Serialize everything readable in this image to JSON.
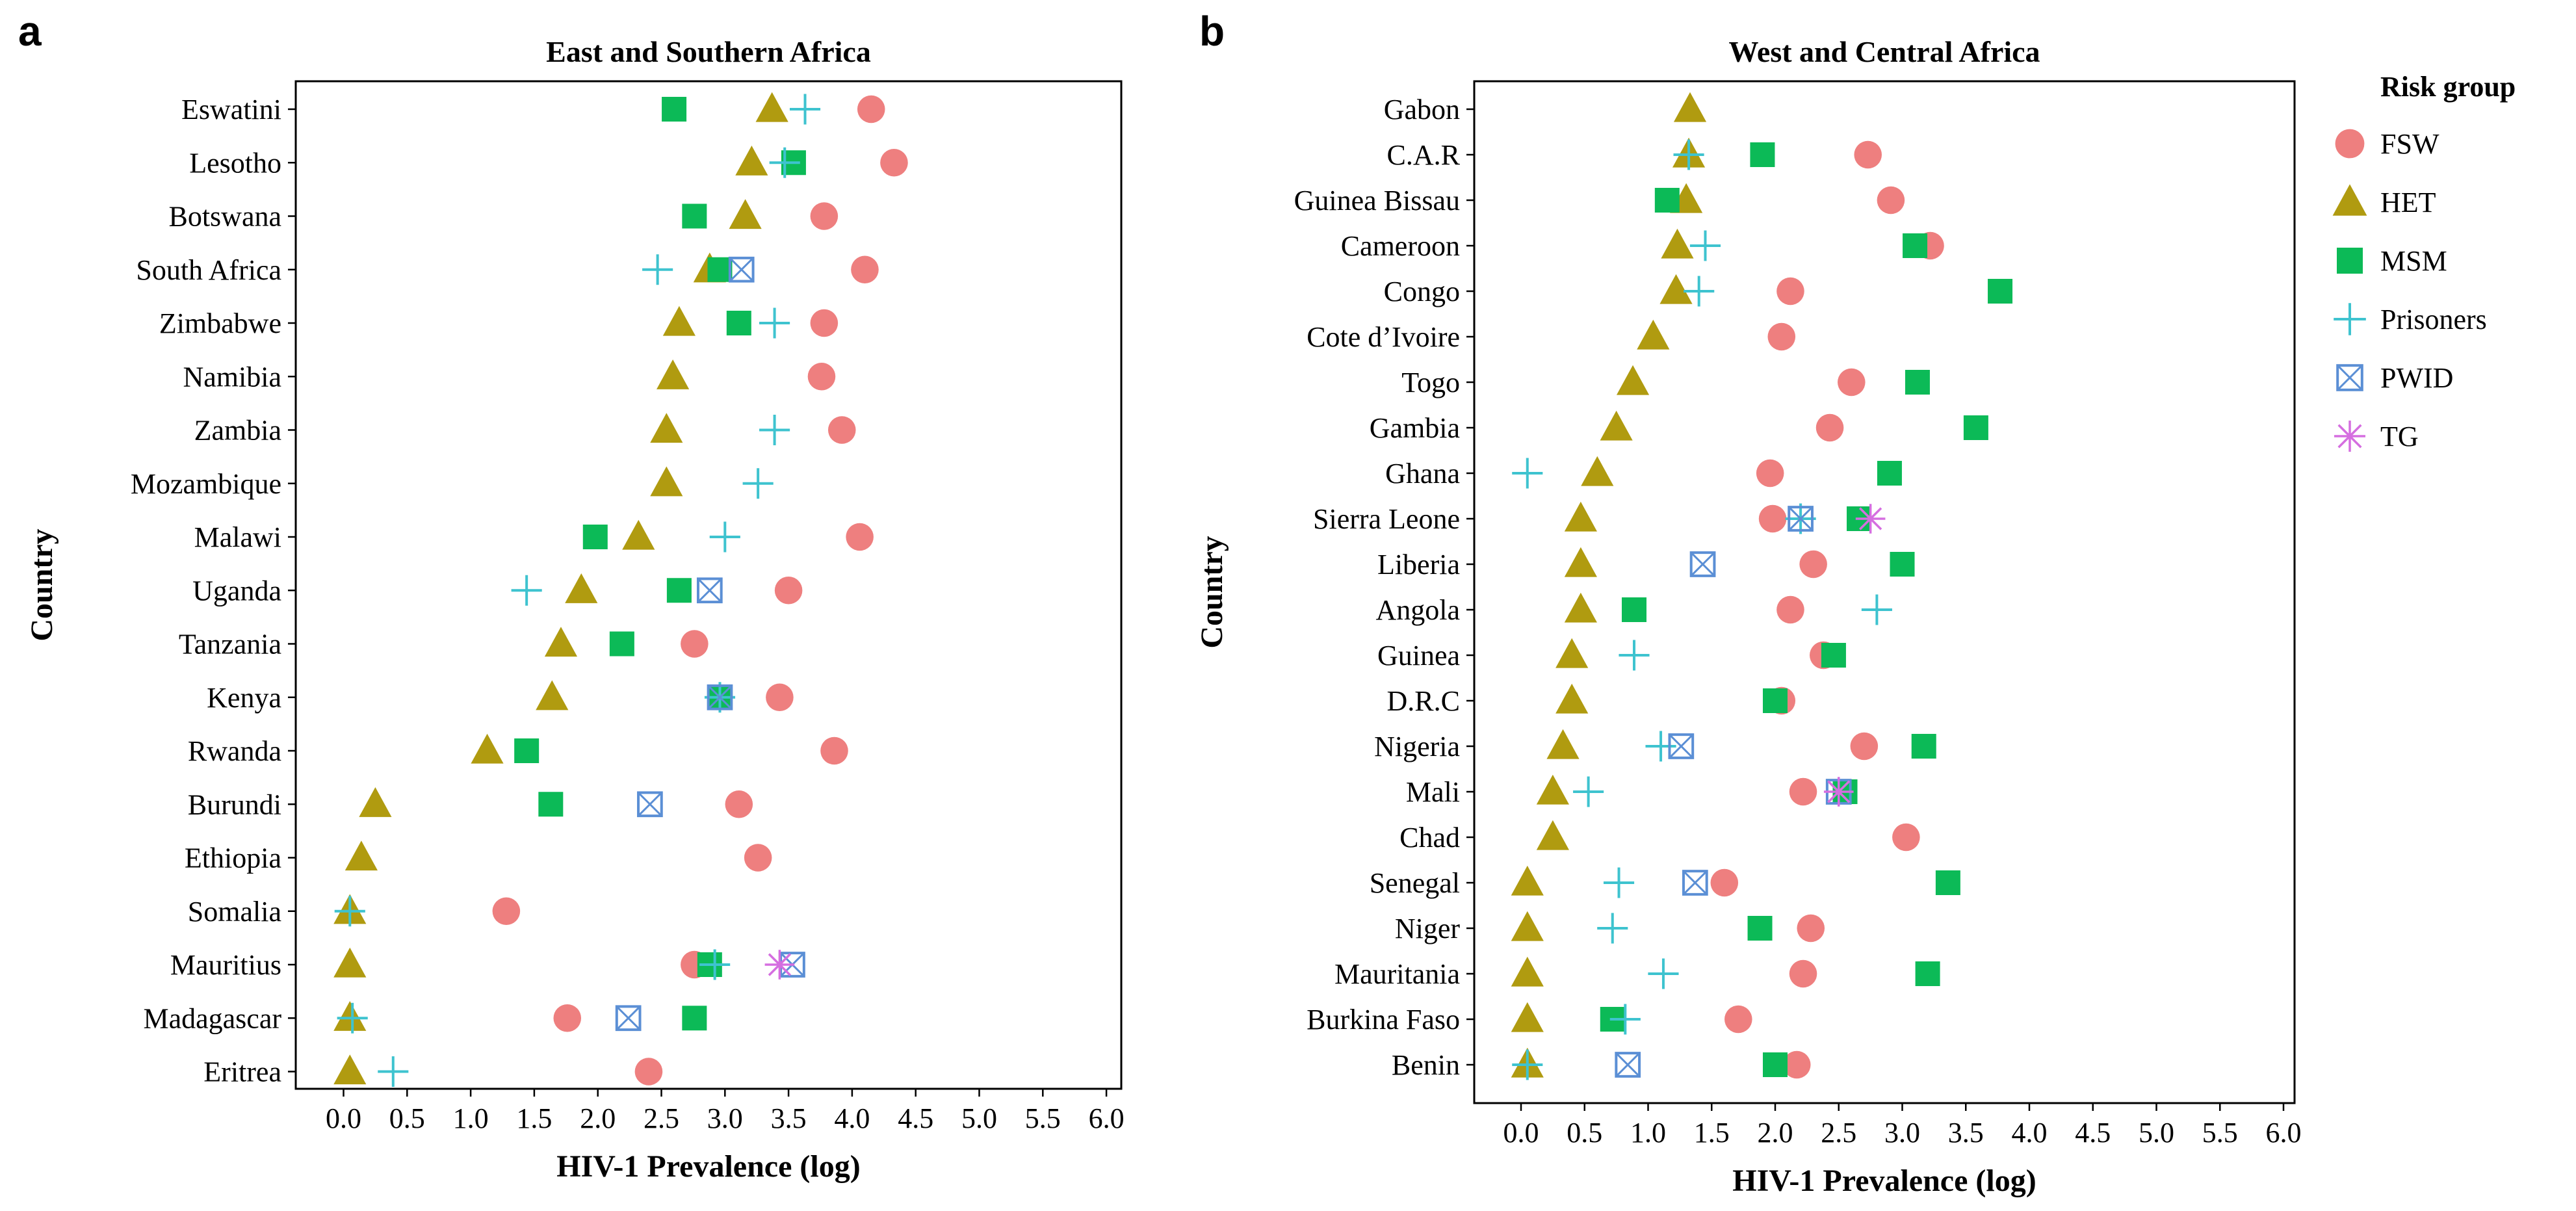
{
  "chart_data": [
    {
      "type": "scatter",
      "panel_label": "a",
      "title": "East and Southern Africa",
      "xlabel": "HIV-1 Prevalence (log)",
      "ylabel": "Country",
      "xlim": [
        -0.2,
        6.2
      ],
      "xticks": [
        "0.0",
        "0.5",
        "1.0",
        "1.5",
        "2.0",
        "2.5",
        "3.0",
        "3.5",
        "4.0",
        "4.5",
        "5.0",
        "5.5",
        "6.0"
      ],
      "categories": [
        "Eswatini",
        "Lesotho",
        "Botswana",
        "South Africa",
        "Zimbabwe",
        "Namibia",
        "Zambia",
        "Mozambique",
        "Malawi",
        "Uganda",
        "Tanzania",
        "Kenya",
        "Rwanda",
        "Burundi",
        "Ethiopia",
        "Somalia",
        "Mauritius",
        "Madagascar",
        "Eritrea"
      ],
      "series": [
        {
          "name": "FSW",
          "points": [
            [
              "Eswatini",
              4.15
            ],
            [
              "Lesotho",
              4.33
            ],
            [
              "Botswana",
              3.78
            ],
            [
              "South Africa",
              4.1
            ],
            [
              "Zimbabwe",
              3.78
            ],
            [
              "Namibia",
              3.76
            ],
            [
              "Zambia",
              3.92
            ],
            [
              "Malawi",
              4.06
            ],
            [
              "Uganda",
              3.5
            ],
            [
              "Tanzania",
              2.76
            ],
            [
              "Kenya",
              3.43
            ],
            [
              "Rwanda",
              3.86
            ],
            [
              "Burundi",
              3.11
            ],
            [
              "Ethiopia",
              3.26
            ],
            [
              "Somalia",
              1.28
            ],
            [
              "Mauritius",
              2.76
            ],
            [
              "Madagascar",
              1.76
            ],
            [
              "Eritrea",
              2.4
            ]
          ]
        },
        {
          "name": "HET",
          "points": [
            [
              "Eswatini",
              3.37
            ],
            [
              "Lesotho",
              3.21
            ],
            [
              "Botswana",
              3.16
            ],
            [
              "South Africa",
              2.88
            ],
            [
              "Zimbabwe",
              2.64
            ],
            [
              "Namibia",
              2.59
            ],
            [
              "Zambia",
              2.54
            ],
            [
              "Mozambique",
              2.54
            ],
            [
              "Malawi",
              2.32
            ],
            [
              "Uganda",
              1.87
            ],
            [
              "Tanzania",
              1.71
            ],
            [
              "Kenya",
              1.64
            ],
            [
              "Rwanda",
              1.13
            ],
            [
              "Burundi",
              0.25
            ],
            [
              "Ethiopia",
              0.14
            ],
            [
              "Somalia",
              0.05
            ],
            [
              "Mauritius",
              0.05
            ],
            [
              "Madagascar",
              0.05
            ],
            [
              "Eritrea",
              0.05
            ]
          ]
        },
        {
          "name": "MSM",
          "points": [
            [
              "Eswatini",
              2.6
            ],
            [
              "Lesotho",
              3.54
            ],
            [
              "Botswana",
              2.76
            ],
            [
              "South Africa",
              2.96
            ],
            [
              "Zimbabwe",
              3.11
            ],
            [
              "Malawi",
              1.98
            ],
            [
              "Uganda",
              2.64
            ],
            [
              "Tanzania",
              2.19
            ],
            [
              "Kenya",
              2.96
            ],
            [
              "Rwanda",
              1.44
            ],
            [
              "Burundi",
              1.63
            ],
            [
              "Mauritius",
              2.88
            ],
            [
              "Madagascar",
              2.76
            ]
          ]
        },
        {
          "name": "Prisoners",
          "points": [
            [
              "Eswatini",
              3.63
            ],
            [
              "Lesotho",
              3.47
            ],
            [
              "South Africa",
              2.47
            ],
            [
              "Zimbabwe",
              3.39
            ],
            [
              "Zambia",
              3.39
            ],
            [
              "Mozambique",
              3.26
            ],
            [
              "Malawi",
              3.0
            ],
            [
              "Uganda",
              1.44
            ],
            [
              "Kenya",
              2.96
            ],
            [
              "Somalia",
              0.05
            ],
            [
              "Mauritius",
              2.92
            ],
            [
              "Madagascar",
              0.07
            ],
            [
              "Eritrea",
              0.39
            ]
          ]
        },
        {
          "name": "PWID",
          "points": [
            [
              "South Africa",
              3.13
            ],
            [
              "Uganda",
              2.88
            ],
            [
              "Kenya",
              2.96
            ],
            [
              "Burundi",
              2.41
            ],
            [
              "Mauritius",
              3.53
            ],
            [
              "Madagascar",
              2.24
            ]
          ]
        },
        {
          "name": "TG",
          "points": [
            [
              "Mauritius",
              3.43
            ]
          ]
        }
      ]
    },
    {
      "type": "scatter",
      "panel_label": "b",
      "title": "West and Central Africa",
      "xlabel": "HIV-1 Prevalence (log)",
      "ylabel": "Country",
      "xlim": [
        -0.2,
        6.2
      ],
      "xticks": [
        "0.0",
        "0.5",
        "1.0",
        "1.5",
        "2.0",
        "2.5",
        "3.0",
        "3.5",
        "4.0",
        "4.5",
        "5.0",
        "5.5",
        "6.0"
      ],
      "categories": [
        "Gabon",
        "C.A.R",
        "Guinea Bissau",
        "Cameroon",
        "Congo",
        "Cote d’Ivoire",
        "Togo",
        "Gambia",
        "Ghana",
        "Sierra Leone",
        "Liberia",
        "Angola",
        "Guinea",
        "D.R.C",
        "Nigeria",
        "Mali",
        "Chad",
        "Senegal",
        "Niger",
        "Mauritania",
        "Burkina Faso",
        "Benin"
      ],
      "series": [
        {
          "name": "FSW",
          "points": [
            [
              "C.A.R",
              2.73
            ],
            [
              "Guinea Bissau",
              2.91
            ],
            [
              "Cameroon",
              3.22
            ],
            [
              "Congo",
              2.12
            ],
            [
              "Cote d’Ivoire",
              2.05
            ],
            [
              "Togo",
              2.6
            ],
            [
              "Gambia",
              2.43
            ],
            [
              "Ghana",
              1.96
            ],
            [
              "Sierra Leone",
              1.98
            ],
            [
              "Liberia",
              2.3
            ],
            [
              "Angola",
              2.12
            ],
            [
              "Guinea",
              2.38
            ],
            [
              "D.R.C",
              2.05
            ],
            [
              "Nigeria",
              2.7
            ],
            [
              "Mali",
              2.22
            ],
            [
              "Chad",
              3.03
            ],
            [
              "Senegal",
              1.6
            ],
            [
              "Niger",
              2.28
            ],
            [
              "Mauritania",
              2.22
            ],
            [
              "Burkina Faso",
              1.71
            ],
            [
              "Benin",
              2.17
            ]
          ]
        },
        {
          "name": "HET",
          "points": [
            [
              "Gabon",
              1.33
            ],
            [
              "C.A.R",
              1.32
            ],
            [
              "Guinea Bissau",
              1.3
            ],
            [
              "Cameroon",
              1.23
            ],
            [
              "Congo",
              1.22
            ],
            [
              "Cote d’Ivoire",
              1.04
            ],
            [
              "Togo",
              0.88
            ],
            [
              "Gambia",
              0.75
            ],
            [
              "Ghana",
              0.6
            ],
            [
              "Sierra Leone",
              0.47
            ],
            [
              "Liberia",
              0.47
            ],
            [
              "Angola",
              0.47
            ],
            [
              "Guinea",
              0.4
            ],
            [
              "D.R.C",
              0.4
            ],
            [
              "Nigeria",
              0.33
            ],
            [
              "Mali",
              0.25
            ],
            [
              "Chad",
              0.25
            ],
            [
              "Senegal",
              0.05
            ],
            [
              "Niger",
              0.05
            ],
            [
              "Mauritania",
              0.05
            ],
            [
              "Burkina Faso",
              0.05
            ],
            [
              "Benin",
              0.05
            ]
          ]
        },
        {
          "name": "MSM",
          "points": [
            [
              "C.A.R",
              1.9
            ],
            [
              "Guinea Bissau",
              1.15
            ],
            [
              "Cameroon",
              3.1
            ],
            [
              "Congo",
              3.77
            ],
            [
              "Togo",
              3.12
            ],
            [
              "Gambia",
              3.58
            ],
            [
              "Ghana",
              2.9
            ],
            [
              "Sierra Leone",
              2.66
            ],
            [
              "Liberia",
              3.0
            ],
            [
              "Angola",
              0.89
            ],
            [
              "Guinea",
              2.46
            ],
            [
              "D.R.C",
              2.0
            ],
            [
              "Nigeria",
              3.17
            ],
            [
              "Mali",
              2.55
            ],
            [
              "Senegal",
              3.36
            ],
            [
              "Niger",
              1.88
            ],
            [
              "Mauritania",
              3.2
            ],
            [
              "Burkina Faso",
              0.72
            ],
            [
              "Benin",
              2.0
            ]
          ]
        },
        {
          "name": "Prisoners",
          "points": [
            [
              "C.A.R",
              1.32
            ],
            [
              "Cameroon",
              1.45
            ],
            [
              "Congo",
              1.4
            ],
            [
              "Ghana",
              0.05
            ],
            [
              "Sierra Leone",
              2.2
            ],
            [
              "Angola",
              2.8
            ],
            [
              "Guinea",
              0.89
            ],
            [
              "Nigeria",
              1.1
            ],
            [
              "Mali",
              0.53
            ],
            [
              "Senegal",
              0.77
            ],
            [
              "Niger",
              0.72
            ],
            [
              "Mauritania",
              1.12
            ],
            [
              "Burkina Faso",
              0.82
            ],
            [
              "Benin",
              0.05
            ]
          ]
        },
        {
          "name": "PWID",
          "points": [
            [
              "Sierra Leone",
              2.2
            ],
            [
              "Liberia",
              1.43
            ],
            [
              "Nigeria",
              1.26
            ],
            [
              "Mali",
              2.5
            ],
            [
              "Senegal",
              1.37
            ],
            [
              "Benin",
              0.84
            ]
          ]
        },
        {
          "name": "TG",
          "points": [
            [
              "Sierra Leone",
              2.75
            ],
            [
              "Mali",
              2.5
            ]
          ]
        }
      ]
    }
  ],
  "legend": {
    "title": "Risk group",
    "items": [
      "FSW",
      "HET",
      "MSM",
      "Prisoners",
      "PWID",
      "TG"
    ]
  },
  "colors": {
    "FSW": "#ee7f7f",
    "HET": "#b09b10",
    "MSM": "#0cba57",
    "Prisoners": "#3ec3cf",
    "PWID": "#5b8fd5",
    "TG": "#d56ee0"
  }
}
